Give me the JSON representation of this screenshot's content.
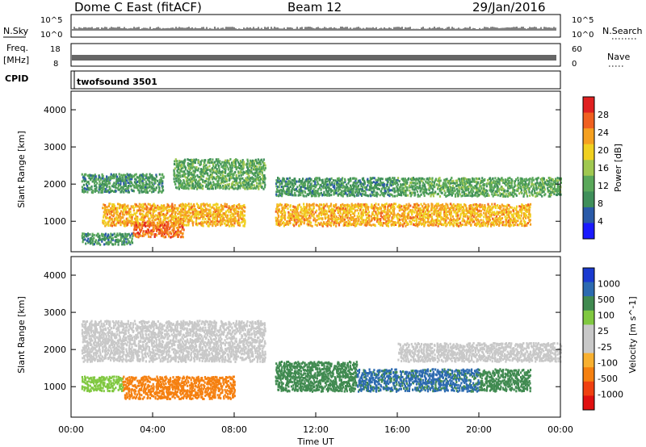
{
  "header": {
    "title": "Dome C East (fitACF)",
    "beam": "Beam 12",
    "date": "29/Jan/2016"
  },
  "strip_panels": {
    "nsky": {
      "label": "N.Sky",
      "ticks": [
        "10^5",
        "10^0"
      ],
      "right_label": "N.Search"
    },
    "freq": {
      "label_line1": "Freq.",
      "label_line2": "[MHz]",
      "ticks": [
        "18",
        "8"
      ],
      "right_ticks": [
        "60",
        "0"
      ],
      "right_label": "Nave"
    },
    "cpid": {
      "label": "CPID",
      "program": "twofsound 3501"
    }
  },
  "x_axis": {
    "label": "Time UT",
    "ticks": [
      "00:00",
      "04:00",
      "08:00",
      "12:00",
      "16:00",
      "20:00",
      "00:00"
    ]
  },
  "colors": {
    "power_scale": [
      "#1a1aff",
      "#2a5aa8",
      "#3f8f5a",
      "#5aa85a",
      "#a0c850",
      "#f0d020",
      "#f5a020",
      "#f06020",
      "#e02020"
    ],
    "velocity_scale": [
      "#e01010",
      "#f04010",
      "#f58010",
      "#f8b030",
      "#c8c8c8",
      "#c8c8c8",
      "#80c840",
      "#408a50",
      "#2c6ab0",
      "#1a3ad0"
    ]
  },
  "chart_data": [
    {
      "type": "heatmap",
      "title": "Power",
      "ylabel": "Slant Range [km]",
      "xlabel": "Time UT",
      "y_ticks": [
        "1000",
        "2000",
        "3000",
        "4000"
      ],
      "ylim": [
        180,
        4500
      ],
      "xlim": [
        "00:00",
        "24:00"
      ],
      "colorbar_label": "Power [dB]",
      "colorbar_ticks": [
        "4",
        "8",
        "12",
        "16",
        "20",
        "24",
        "28"
      ],
      "colorbar_range": [
        0,
        32
      ],
      "regions": [
        {
          "t": [
            0.5,
            4.5
          ],
          "r": [
            1800,
            2300
          ],
          "v": 10
        },
        {
          "t": [
            1.5,
            8.5
          ],
          "r": [
            900,
            1500
          ],
          "v": 22
        },
        {
          "t": [
            3.0,
            5.5
          ],
          "r": [
            600,
            1000
          ],
          "v": 26
        },
        {
          "t": [
            5.0,
            9.5
          ],
          "r": [
            1900,
            2700
          ],
          "v": 12
        },
        {
          "t": [
            10.0,
            22.5
          ],
          "r": [
            900,
            1500
          ],
          "v": 22
        },
        {
          "t": [
            10.0,
            16.0
          ],
          "r": [
            1700,
            2200
          ],
          "v": 10
        },
        {
          "t": [
            16.0,
            24.0
          ],
          "r": [
            1700,
            2200
          ],
          "v": 12
        },
        {
          "t": [
            0.5,
            3.0
          ],
          "r": [
            400,
            700
          ],
          "v": 10
        }
      ]
    },
    {
      "type": "heatmap",
      "title": "Velocity",
      "ylabel": "Slant Range [km]",
      "xlabel": "Time UT",
      "y_ticks": [
        "1000",
        "2000",
        "3000",
        "4000"
      ],
      "ylim": [
        180,
        4500
      ],
      "xlim": [
        "00:00",
        "24:00"
      ],
      "colorbar_label": "Velocity [m s^-1]",
      "colorbar_ticks": [
        "1000",
        "500",
        "100",
        "25",
        "-25",
        "-100",
        "-500",
        "-1000"
      ],
      "regions": [
        {
          "t": [
            0.5,
            9.5
          ],
          "r": [
            1700,
            2800
          ],
          "v": 0
        },
        {
          "t": [
            2.5,
            8.0
          ],
          "r": [
            700,
            1300
          ],
          "v": -200
        },
        {
          "t": [
            0.5,
            2.5
          ],
          "r": [
            900,
            1300
          ],
          "v": 60
        },
        {
          "t": [
            10.0,
            14.0
          ],
          "r": [
            900,
            1700
          ],
          "v": 200
        },
        {
          "t": [
            14.0,
            20.0
          ],
          "r": [
            900,
            1500
          ],
          "v": 600
        },
        {
          "t": [
            20.0,
            22.5
          ],
          "r": [
            900,
            1500
          ],
          "v": 150
        },
        {
          "t": [
            16.0,
            24.0
          ],
          "r": [
            1700,
            2200
          ],
          "v": 0
        }
      ]
    }
  ]
}
